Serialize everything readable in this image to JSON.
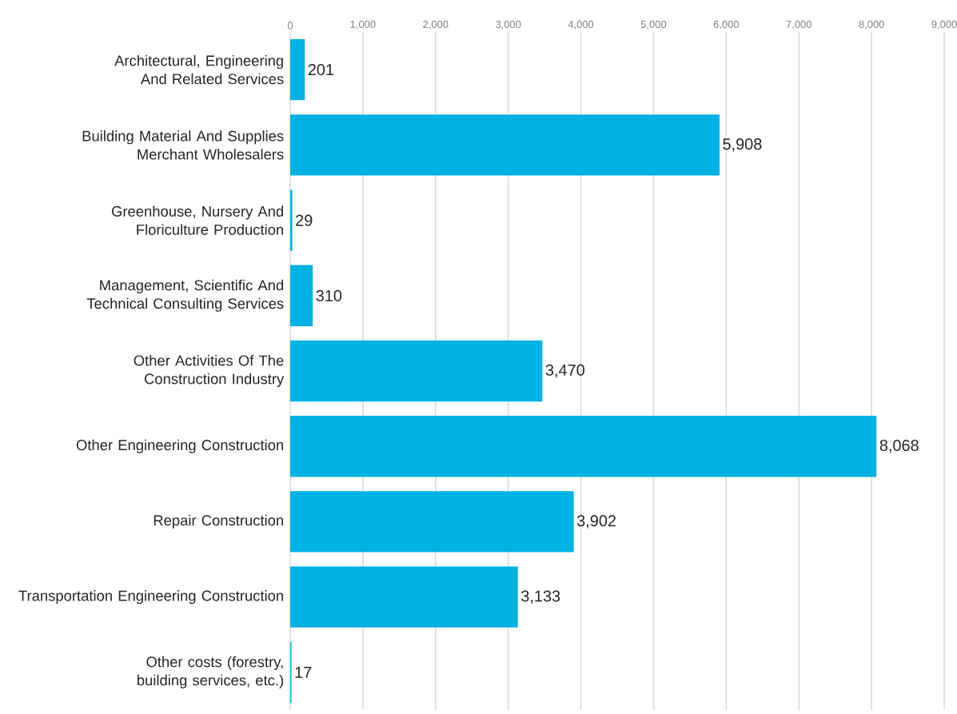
{
  "chart_data": {
    "type": "bar",
    "orientation": "horizontal",
    "color": "#00b2e3",
    "categories": [
      "Architectural, Engineering And Related Services",
      "Building Material And Supplies Merchant Wholesalers",
      "Greenhouse, Nursery And Floriculture Production",
      "Management, Scientific And Technical Consulting Services",
      "Other Activities Of The Construction Industry",
      "Other Engineering Construction",
      "Repair Construction",
      "Transportation Engineering Construction",
      "Other costs (forestry, building services, etc.)"
    ],
    "values": [
      201,
      5908,
      29,
      310,
      3470,
      8068,
      3902,
      3133,
      17
    ],
    "value_labels": [
      "201",
      "5,908",
      "29",
      "310",
      "3,470",
      "8,068",
      "3,902",
      "3,133",
      "17"
    ],
    "xlim": [
      0,
      9000
    ],
    "xticks": [
      0,
      {
        "value": 1000,
        "label": "1,000"
      },
      {
        "value": 2000,
        "label": "2,000"
      },
      {
        "value": 3000,
        "label": "3,000"
      },
      {
        "value": 4000,
        "label": "4,000"
      },
      {
        "value": 5000,
        "label": "5,000"
      },
      {
        "value": 6000,
        "label": "6,000"
      },
      {
        "value": 7000,
        "label": "7,000"
      },
      {
        "value": 8000,
        "label": "8,000"
      },
      {
        "value": 9000,
        "label": "9,000"
      }
    ],
    "grid": "x"
  }
}
